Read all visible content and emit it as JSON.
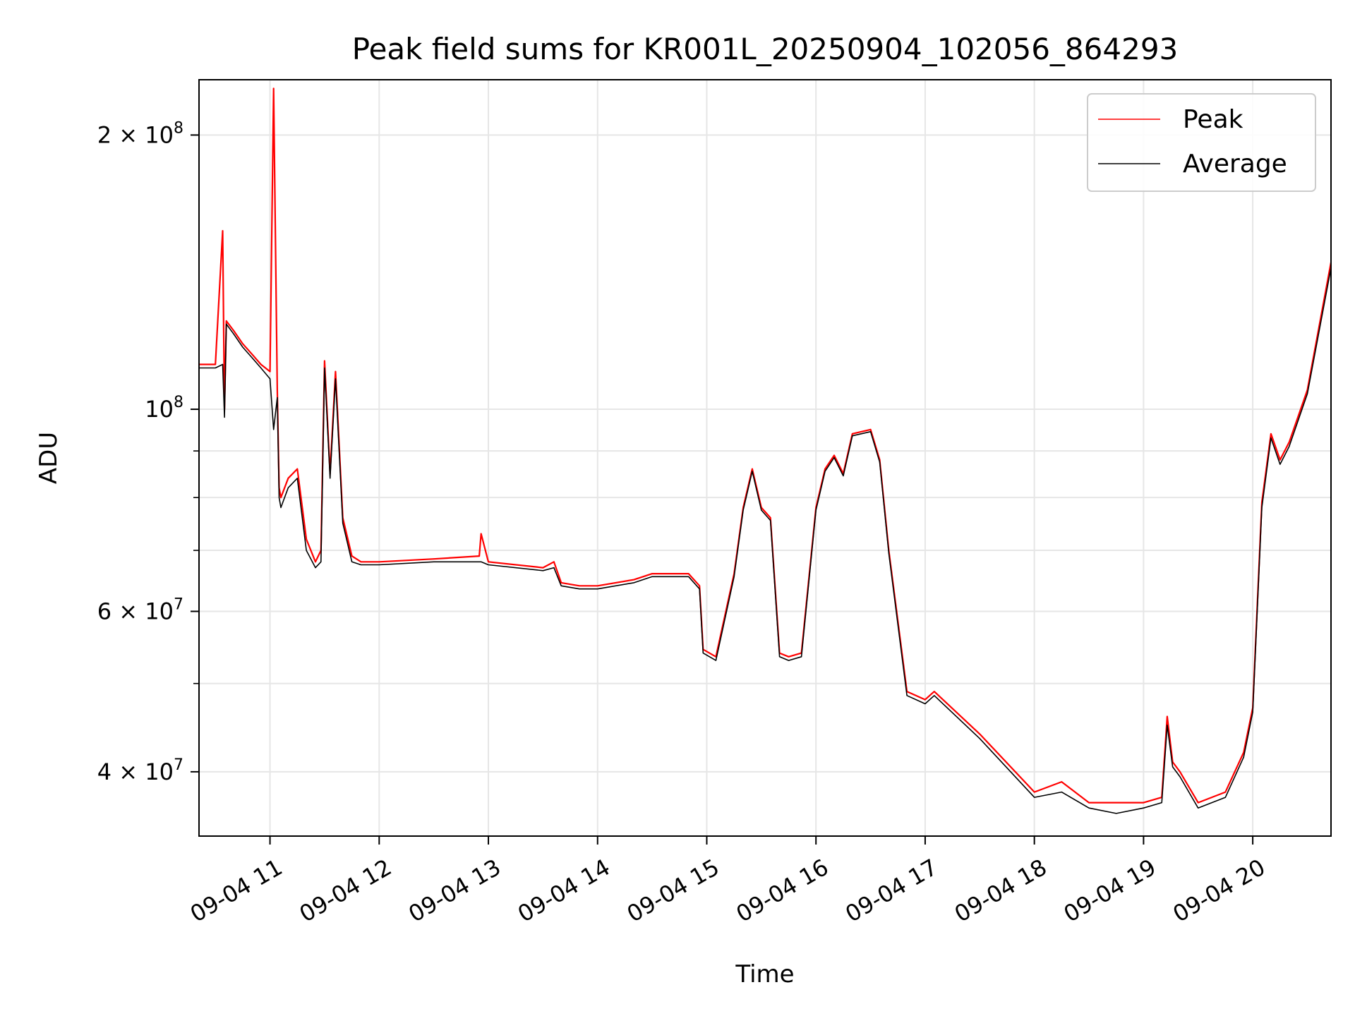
{
  "chart_data": {
    "type": "line",
    "title": "Peak field sums for KR001L_20250904_102056_864293",
    "xlabel": "Time",
    "ylabel": "ADU",
    "yscale": "log",
    "ylim": [
      34000000,
      230000000
    ],
    "xlim": [
      "09-04 10:21",
      "09-04 20:43"
    ],
    "grid": true,
    "legend_position": "top-right",
    "x_ticks": [
      "09-04 11",
      "09-04 12",
      "09-04 13",
      "09-04 14",
      "09-04 15",
      "09-04 16",
      "09-04 17",
      "09-04 18",
      "09-04 19",
      "09-04 20"
    ],
    "y_ticks": [
      {
        "value": 40000000,
        "mantissa": "4",
        "exponent": "7"
      },
      {
        "value": 60000000,
        "mantissa": "6",
        "exponent": "7"
      },
      {
        "value": 100000000,
        "mantissa": "",
        "exponent": "8"
      },
      {
        "value": 200000000,
        "mantissa": "2",
        "exponent": "8"
      }
    ],
    "series": [
      {
        "name": "Peak",
        "color": "#ff0000",
        "x": [
          "09-04 10:21",
          "09-04 10:30",
          "09-04 10:34",
          "09-04 10:35",
          "09-04 10:36",
          "09-04 10:40",
          "09-04 10:45",
          "09-04 10:50",
          "09-04 10:55",
          "09-04 11:00",
          "09-04 11:02",
          "09-04 11:04",
          "09-04 11:05",
          "09-04 11:06",
          "09-04 11:10",
          "09-04 11:15",
          "09-04 11:20",
          "09-04 11:25",
          "09-04 11:28",
          "09-04 11:30",
          "09-04 11:33",
          "09-04 11:36",
          "09-04 11:40",
          "09-04 11:45",
          "09-04 11:50",
          "09-04 12:00",
          "09-04 12:30",
          "09-04 12:55",
          "09-04 12:56",
          "09-04 13:00",
          "09-04 13:30",
          "09-04 13:36",
          "09-04 13:40",
          "09-04 13:50",
          "09-04 14:00",
          "09-04 14:20",
          "09-04 14:30",
          "09-04 14:50",
          "09-04 14:56",
          "09-04 14:58",
          "09-04 15:05",
          "09-04 15:15",
          "09-04 15:20",
          "09-04 15:25",
          "09-04 15:30",
          "09-04 15:35",
          "09-04 15:40",
          "09-04 15:45",
          "09-04 15:52",
          "09-04 16:00",
          "09-04 16:05",
          "09-04 16:10",
          "09-04 16:15",
          "09-04 16:20",
          "09-04 16:30",
          "09-04 16:35",
          "09-04 16:40",
          "09-04 16:50",
          "09-04 17:00",
          "09-04 17:05",
          "09-04 17:30",
          "09-04 18:00",
          "09-04 18:15",
          "09-04 18:30",
          "09-04 18:45",
          "09-04 19:00",
          "09-04 19:10",
          "09-04 19:13",
          "09-04 19:16",
          "09-04 19:20",
          "09-04 19:30",
          "09-04 19:45",
          "09-04 19:55",
          "09-04 20:00",
          "09-04 20:05",
          "09-04 20:10",
          "09-04 20:15",
          "09-04 20:20",
          "09-04 20:30",
          "09-04 20:43"
        ],
        "values": [
          112000000,
          112000000,
          157000000,
          100000000,
          125000000,
          122000000,
          118000000,
          115000000,
          112000000,
          110000000,
          225000000,
          105000000,
          82000000,
          80000000,
          84000000,
          86000000,
          72000000,
          68000000,
          70000000,
          113000000,
          85000000,
          110000000,
          76000000,
          69000000,
          68000000,
          68000000,
          68500000,
          69000000,
          73000000,
          68000000,
          67000000,
          68000000,
          64500000,
          64000000,
          64000000,
          65000000,
          66000000,
          66000000,
          64000000,
          54500000,
          53500000,
          66000000,
          78000000,
          86000000,
          78000000,
          76000000,
          54000000,
          53500000,
          54000000,
          78000000,
          86000000,
          89000000,
          85000000,
          94000000,
          95000000,
          88000000,
          70000000,
          49000000,
          48000000,
          49000000,
          44000000,
          38000000,
          39000000,
          37000000,
          37000000,
          37000000,
          37500000,
          46000000,
          41000000,
          40000000,
          37000000,
          38000000,
          42000000,
          47000000,
          79000000,
          94000000,
          88000000,
          92000000,
          105000000,
          145000000
        ]
      },
      {
        "name": "Average",
        "color": "#000000",
        "x": [
          "09-04 10:21",
          "09-04 10:30",
          "09-04 10:34",
          "09-04 10:35",
          "09-04 10:36",
          "09-04 10:40",
          "09-04 10:45",
          "09-04 10:50",
          "09-04 10:55",
          "09-04 11:00",
          "09-04 11:02",
          "09-04 11:04",
          "09-04 11:05",
          "09-04 11:06",
          "09-04 11:10",
          "09-04 11:15",
          "09-04 11:20",
          "09-04 11:25",
          "09-04 11:28",
          "09-04 11:30",
          "09-04 11:33",
          "09-04 11:36",
          "09-04 11:40",
          "09-04 11:45",
          "09-04 11:50",
          "09-04 12:00",
          "09-04 12:30",
          "09-04 12:55",
          "09-04 12:56",
          "09-04 13:00",
          "09-04 13:30",
          "09-04 13:36",
          "09-04 13:40",
          "09-04 13:50",
          "09-04 14:00",
          "09-04 14:20",
          "09-04 14:30",
          "09-04 14:50",
          "09-04 14:56",
          "09-04 14:58",
          "09-04 15:05",
          "09-04 15:15",
          "09-04 15:20",
          "09-04 15:25",
          "09-04 15:30",
          "09-04 15:35",
          "09-04 15:40",
          "09-04 15:45",
          "09-04 15:52",
          "09-04 16:00",
          "09-04 16:05",
          "09-04 16:10",
          "09-04 16:15",
          "09-04 16:20",
          "09-04 16:30",
          "09-04 16:35",
          "09-04 16:40",
          "09-04 16:50",
          "09-04 17:00",
          "09-04 17:05",
          "09-04 17:30",
          "09-04 18:00",
          "09-04 18:15",
          "09-04 18:30",
          "09-04 18:45",
          "09-04 19:00",
          "09-04 19:10",
          "09-04 19:13",
          "09-04 19:16",
          "09-04 19:20",
          "09-04 19:30",
          "09-04 19:45",
          "09-04 19:55",
          "09-04 20:00",
          "09-04 20:05",
          "09-04 20:10",
          "09-04 20:15",
          "09-04 20:20",
          "09-04 20:30",
          "09-04 20:43"
        ],
        "values": [
          111000000,
          111000000,
          112000000,
          98000000,
          124000000,
          121000000,
          117000000,
          114000000,
          111000000,
          108000000,
          95000000,
          103000000,
          80000000,
          78000000,
          82000000,
          84000000,
          70000000,
          67000000,
          68000000,
          111000000,
          84000000,
          108000000,
          75000000,
          68000000,
          67500000,
          67500000,
          68000000,
          68000000,
          68000000,
          67500000,
          66500000,
          67000000,
          64000000,
          63500000,
          63500000,
          64500000,
          65500000,
          65500000,
          63500000,
          54000000,
          53000000,
          65500000,
          77500000,
          85500000,
          77500000,
          75500000,
          53500000,
          53000000,
          53500000,
          77500000,
          85500000,
          88500000,
          84500000,
          93500000,
          94500000,
          87500000,
          69500000,
          48500000,
          47500000,
          48500000,
          43500000,
          37500000,
          38000000,
          36500000,
          36000000,
          36500000,
          37000000,
          45000000,
          40500000,
          39500000,
          36500000,
          37500000,
          41500000,
          46500000,
          78000000,
          93000000,
          87000000,
          91000000,
          104000000,
          143000000
        ]
      }
    ]
  }
}
